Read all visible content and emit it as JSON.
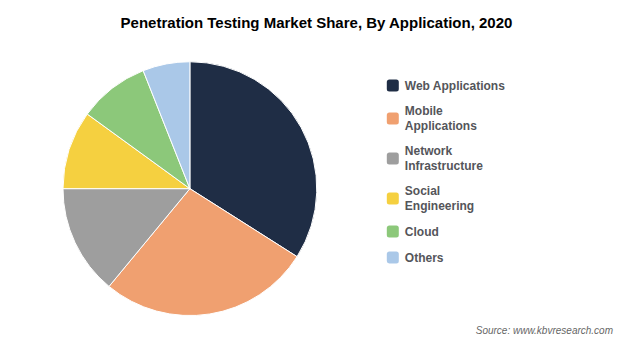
{
  "chart_data": {
    "type": "pie",
    "title": "Penetration Testing Market Share, By Application, 2020",
    "categories": [
      "Web Applications",
      "Mobile\nApplications",
      "Network\nInfrastructure",
      "Social\nEngineering",
      "Cloud",
      "Others"
    ],
    "values": [
      34,
      27,
      14,
      10,
      9,
      6
    ],
    "colors": [
      "#1f2d45",
      "#f0a070",
      "#9e9e9e",
      "#f5d040",
      "#8cc87a",
      "#aac8e8"
    ],
    "legend": "right",
    "annotations": [
      "Source: www.kbvresearch.com"
    ]
  }
}
